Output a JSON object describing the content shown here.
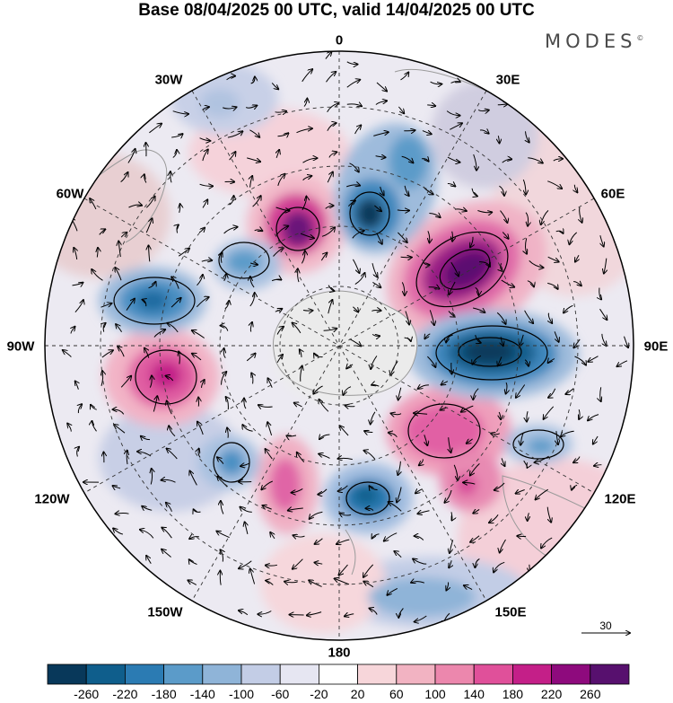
{
  "title": "Base 08/04/2025 00 UTC, valid 14/04/2025 00 UTC",
  "brand": "MODES",
  "brand_mark": "©",
  "longitude_labels": {
    "lon_0": "0",
    "lon_30E": "30E",
    "lon_60E": "60E",
    "lon_90E": "90E",
    "lon_120E": "120E",
    "lon_150E": "150E",
    "lon_180": "180",
    "lon_150W": "150W",
    "lon_120W": "120W",
    "lon_90W": "90W",
    "lon_60W": "60W",
    "lon_30W": "30W"
  },
  "vector_reference": {
    "value": "30"
  },
  "colorbar": {
    "labels": [
      "-260",
      "-220",
      "-180",
      "-140",
      "-100",
      "-60",
      "-20",
      "20",
      "60",
      "100",
      "140",
      "180",
      "220",
      "260"
    ],
    "colors": [
      "#08385a",
      "#0f5e8c",
      "#2b7bb3",
      "#5b9bc9",
      "#8fb4d8",
      "#c3cde6",
      "#e6e6f2",
      "#ffffff",
      "#f7d6da",
      "#f2b3c2",
      "#ec87ad",
      "#e0509a",
      "#c41f88",
      "#8e0a7d",
      "#57106e"
    ]
  }
}
